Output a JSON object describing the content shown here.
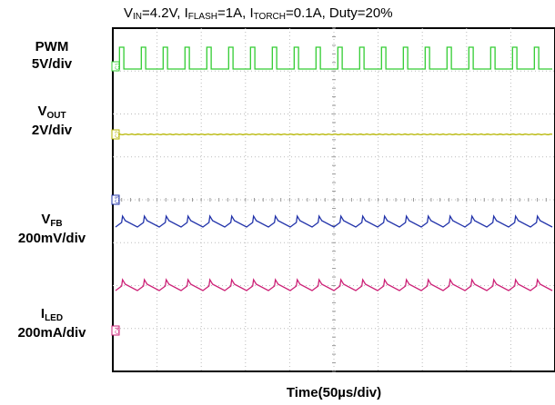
{
  "chart_data": {
    "type": "line",
    "title": {
      "parts": [
        {
          "t": "V"
        },
        {
          "s": "IN"
        },
        {
          "t": "=4.2V, I"
        },
        {
          "s": "FLASH"
        },
        {
          "t": "=1A, I"
        },
        {
          "s": "TORCH"
        },
        {
          "t": "=0.1A, Duty=20%"
        }
      ]
    },
    "xlabel": "Time(50µs/div)",
    "grid": true,
    "channels": [
      {
        "name": "PWM",
        "name_sub": "",
        "scale": "5V/div",
        "marker": "C1",
        "color": "#33cc33",
        "waveform": "pulse",
        "duty": 0.2,
        "periods": 20
      },
      {
        "name": "V",
        "name_sub": "OUT",
        "scale": "2V/div",
        "marker": "C2",
        "color": "#b5b500",
        "waveform": "flat",
        "periods": 20
      },
      {
        "name": "V",
        "name_sub": "FB",
        "scale": "200mV/div",
        "marker": "C3",
        "color": "#2233aa",
        "waveform": "sawtooth",
        "periods": 20
      },
      {
        "name": "I",
        "name_sub": "LED",
        "scale": "200mA/div",
        "marker": "C4",
        "color": "#cc2277",
        "waveform": "sawtooth",
        "periods": 20
      }
    ]
  }
}
